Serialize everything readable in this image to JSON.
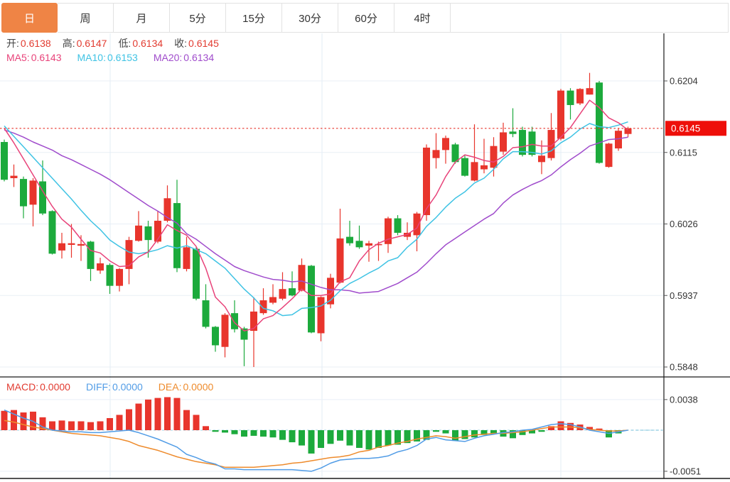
{
  "tabs": {
    "items": [
      {
        "label": "日",
        "active": true
      },
      {
        "label": "周",
        "active": false
      },
      {
        "label": "月",
        "active": false
      },
      {
        "label": "5分",
        "active": false
      },
      {
        "label": "15分",
        "active": false
      },
      {
        "label": "30分",
        "active": false
      },
      {
        "label": "60分",
        "active": false
      },
      {
        "label": "4时",
        "active": false
      }
    ]
  },
  "quote_bar": {
    "items": [
      {
        "label": "开:",
        "value": "0.6138",
        "color": "#e23b30"
      },
      {
        "label": "高:",
        "value": "0.6147",
        "color": "#e23b30"
      },
      {
        "label": "低:",
        "value": "0.6134",
        "color": "#e23b30"
      },
      {
        "label": "收:",
        "value": "0.6145",
        "color": "#e23b30"
      }
    ]
  },
  "ma_bar": {
    "items": [
      {
        "label": "MA5:",
        "value": "0.6143",
        "color": "#e8437a"
      },
      {
        "label": "MA10:",
        "value": "0.6153",
        "color": "#3fc3e4"
      },
      {
        "label": "MA20:",
        "value": "0.6134",
        "color": "#a04ccc"
      }
    ]
  },
  "macd_bar": {
    "items": [
      {
        "label": "MACD:",
        "value": "0.0000",
        "color": "#e23b30"
      },
      {
        "label": "DIFF:",
        "value": "0.0000",
        "color": "#519ce6"
      },
      {
        "label": "DEA:",
        "value": "0.0000",
        "color": "#ee8b2c"
      }
    ]
  },
  "chart_data": {
    "type": "candlestick",
    "subpanel_type": "macd-bar-line",
    "y_axis": {
      "main_ticks": [
        0.6204,
        0.6115,
        0.6026,
        0.5937,
        0.5848
      ],
      "current_price": 0.6145,
      "current_price_label": "0.6145",
      "macd_ticks": [
        0.0038,
        -0.0051
      ]
    },
    "legend": {
      "ma5": "MA5",
      "ma10": "MA10",
      "ma20": "MA20",
      "macd": "MACD",
      "diff": "DIFF",
      "dea": "DEA"
    },
    "candles_ohlc": [
      [
        0.6128,
        0.6131,
        0.6079,
        0.6081
      ],
      [
        0.6083,
        0.61,
        0.6072,
        0.6086
      ],
      [
        0.6082,
        0.6085,
        0.6033,
        0.6048
      ],
      [
        0.605,
        0.6083,
        0.6023,
        0.608
      ],
      [
        0.6079,
        0.6105,
        0.6037,
        0.6039
      ],
      [
        0.6042,
        0.6043,
        0.5988,
        0.5989
      ],
      [
        0.5993,
        0.6015,
        0.5983,
        0.6002
      ],
      [
        0.6,
        0.6026,
        0.5984,
        0.6002
      ],
      [
        0.5999,
        0.6012,
        0.598,
        0.6001
      ],
      [
        0.6004,
        0.6005,
        0.5955,
        0.597
      ],
      [
        0.5968,
        0.5984,
        0.5964,
        0.5977
      ],
      [
        0.5975,
        0.5977,
        0.5939,
        0.5949
      ],
      [
        0.5949,
        0.5971,
        0.5942,
        0.597
      ],
      [
        0.597,
        0.601,
        0.5951,
        0.6006
      ],
      [
        0.6005,
        0.6042,
        0.6004,
        0.6024
      ],
      [
        0.6023,
        0.603,
        0.5984,
        0.6006
      ],
      [
        0.6004,
        0.6042,
        0.6002,
        0.603
      ],
      [
        0.603,
        0.6074,
        0.6028,
        0.6058
      ],
      [
        0.6052,
        0.6081,
        0.5966,
        0.5971
      ],
      [
        0.597,
        0.601,
        0.5967,
        0.5997
      ],
      [
        0.5995,
        0.5997,
        0.5931,
        0.5933
      ],
      [
        0.5931,
        0.5951,
        0.5896,
        0.5898
      ],
      [
        0.5898,
        0.5899,
        0.5867,
        0.5875
      ],
      [
        0.5873,
        0.5915,
        0.586,
        0.5913
      ],
      [
        0.5915,
        0.5931,
        0.5891,
        0.5895
      ],
      [
        0.5896,
        0.5898,
        0.5849,
        0.5882
      ],
      [
        0.5893,
        0.5935,
        0.5848,
        0.5917
      ],
      [
        0.5915,
        0.5946,
        0.5913,
        0.5931
      ],
      [
        0.5928,
        0.5951,
        0.5926,
        0.5935
      ],
      [
        0.5933,
        0.5966,
        0.5931,
        0.5945
      ],
      [
        0.5946,
        0.5967,
        0.5936,
        0.5937
      ],
      [
        0.5943,
        0.5983,
        0.5942,
        0.5975
      ],
      [
        0.5974,
        0.5975,
        0.589,
        0.5891
      ],
      [
        0.589,
        0.5936,
        0.588,
        0.5935
      ],
      [
        0.5926,
        0.5964,
        0.5921,
        0.5959
      ],
      [
        0.5953,
        0.6045,
        0.5952,
        0.6008
      ],
      [
        0.601,
        0.603,
        0.5999,
        0.6002
      ],
      [
        0.6005,
        0.6024,
        0.5995,
        0.5997
      ],
      [
        0.5999,
        0.6005,
        0.5979,
        0.6002
      ],
      [
        0.6,
        0.6004,
        0.598,
        0.6001
      ],
      [
        0.6001,
        0.6035,
        0.599,
        0.6033
      ],
      [
        0.6033,
        0.6037,
        0.6012,
        0.6015
      ],
      [
        0.601,
        0.6028,
        0.6006,
        0.6015
      ],
      [
        0.6012,
        0.6041,
        0.5992,
        0.6039
      ],
      [
        0.6037,
        0.6125,
        0.603,
        0.6121
      ],
      [
        0.6108,
        0.6139,
        0.6095,
        0.6118
      ],
      [
        0.6118,
        0.6136,
        0.6101,
        0.6133
      ],
      [
        0.6125,
        0.6127,
        0.6101,
        0.6103
      ],
      [
        0.6108,
        0.6111,
        0.6085,
        0.6086
      ],
      [
        0.608,
        0.615,
        0.6079,
        0.6103
      ],
      [
        0.6094,
        0.6132,
        0.6089,
        0.6099
      ],
      [
        0.6096,
        0.6134,
        0.6085,
        0.6123
      ],
      [
        0.6116,
        0.6152,
        0.6112,
        0.614
      ],
      [
        0.6141,
        0.617,
        0.6134,
        0.6138
      ],
      [
        0.6143,
        0.6147,
        0.611,
        0.6112
      ],
      [
        0.6141,
        0.6147,
        0.611,
        0.6112
      ],
      [
        0.6103,
        0.613,
        0.6088,
        0.6111
      ],
      [
        0.6108,
        0.6164,
        0.6105,
        0.6143
      ],
      [
        0.6132,
        0.6194,
        0.613,
        0.6192
      ],
      [
        0.6192,
        0.6195,
        0.6156,
        0.6174
      ],
      [
        0.6176,
        0.6195,
        0.6174,
        0.6194
      ],
      [
        0.6187,
        0.6214,
        0.6187,
        0.6195
      ],
      [
        0.6202,
        0.6204,
        0.6101,
        0.6102
      ],
      [
        0.6097,
        0.6127,
        0.6096,
        0.6126
      ],
      [
        0.612,
        0.6145,
        0.6117,
        0.6142
      ],
      [
        0.6138,
        0.6147,
        0.6134,
        0.6145
      ]
    ],
    "ma5": [
      0.6145,
      0.6127,
      0.6107,
      0.6087,
      0.6067,
      0.6048,
      0.6032,
      0.6022,
      0.6007,
      0.5993,
      0.599,
      0.598,
      0.5973,
      0.5974,
      0.5985,
      0.5991,
      0.6007,
      0.6025,
      0.6018,
      0.6012,
      0.5998,
      0.5971,
      0.5935,
      0.5923,
      0.5903,
      0.5893,
      0.5896,
      0.5908,
      0.5912,
      0.5922,
      0.5933,
      0.5945,
      0.5937,
      0.5937,
      0.5939,
      0.5954,
      0.5959,
      0.598,
      0.5994,
      0.6002,
      0.6007,
      0.601,
      0.6013,
      0.6021,
      0.6045,
      0.6062,
      0.6085,
      0.6103,
      0.6112,
      0.6109,
      0.6105,
      0.6103,
      0.611,
      0.6121,
      0.6122,
      0.6125,
      0.6123,
      0.6123,
      0.6134,
      0.6146,
      0.6163,
      0.618,
      0.6171,
      0.6158,
      0.6152,
      0.6143
    ],
    "ma10": [
      0.6148,
      0.6135,
      0.6122,
      0.6109,
      0.6096,
      0.6083,
      0.607,
      0.6057,
      0.6043,
      0.603,
      0.6019,
      0.6006,
      0.5998,
      0.5991,
      0.5989,
      0.5991,
      0.5994,
      0.5999,
      0.5996,
      0.5999,
      0.5994,
      0.5989,
      0.598,
      0.5971,
      0.5958,
      0.5945,
      0.5934,
      0.5921,
      0.5918,
      0.5912,
      0.5913,
      0.5921,
      0.5922,
      0.5924,
      0.5931,
      0.5943,
      0.5952,
      0.5958,
      0.5965,
      0.5971,
      0.598,
      0.5984,
      0.5997,
      0.6007,
      0.6023,
      0.6034,
      0.6047,
      0.6058,
      0.6066,
      0.6077,
      0.6083,
      0.6094,
      0.6107,
      0.6116,
      0.6116,
      0.6115,
      0.6113,
      0.6117,
      0.6127,
      0.6134,
      0.6144,
      0.6151,
      0.6147,
      0.6146,
      0.6149,
      0.6153
    ],
    "ma20": [
      0.6143,
      0.6139,
      0.6134,
      0.6128,
      0.6123,
      0.6118,
      0.6111,
      0.6106,
      0.61,
      0.6094,
      0.6088,
      0.6081,
      0.6073,
      0.6065,
      0.6057,
      0.6049,
      0.6042,
      0.6034,
      0.6027,
      0.6014,
      0.6007,
      0.5998,
      0.5989,
      0.5981,
      0.5973,
      0.5968,
      0.5964,
      0.596,
      0.5957,
      0.5956,
      0.5954,
      0.5955,
      0.5951,
      0.5947,
      0.5944,
      0.5944,
      0.5943,
      0.594,
      0.5941,
      0.5942,
      0.5947,
      0.5952,
      0.5959,
      0.5966,
      0.5977,
      0.5989,
      0.6,
      0.6008,
      0.6016,
      0.6024,
      0.6032,
      0.6039,
      0.6052,
      0.6062,
      0.6069,
      0.6075,
      0.608,
      0.6087,
      0.6097,
      0.6106,
      0.6114,
      0.6123,
      0.6127,
      0.6131,
      0.6132,
      0.6134
    ],
    "macd_histogram": [
      0.0024,
      0.0025,
      0.0022,
      0.0023,
      0.0016,
      0.0011,
      0.0012,
      0.0011,
      0.0011,
      0.001,
      0.0011,
      0.0015,
      0.0019,
      0.0026,
      0.0033,
      0.0038,
      0.004,
      0.0041,
      0.004,
      0.0025,
      0.0019,
      0.0005,
      -0.0002,
      -0.0003,
      -0.0005,
      -0.0008,
      -0.0007,
      -0.0008,
      -0.0009,
      -0.0012,
      -0.0015,
      -0.0019,
      -0.0029,
      -0.0022,
      -0.0017,
      -0.0013,
      -0.0019,
      -0.0022,
      -0.0024,
      -0.0022,
      -0.0019,
      -0.0018,
      -0.0016,
      -0.0014,
      -0.0012,
      -0.0002,
      -0.0004,
      -0.0013,
      -0.0011,
      -0.0009,
      -0.0006,
      -0.0005,
      -0.0008,
      -0.001,
      -0.0006,
      -0.0004,
      -0.0002,
      0.0005,
      0.0011,
      0.0009,
      0.0007,
      0.0004,
      0.0002,
      -0.0009,
      -0.0004,
      0.0
    ],
    "diff": [
      0.0025,
      0.002,
      0.0015,
      0.0011,
      0.0004,
      0.0,
      -0.0001,
      -0.0002,
      -0.0002,
      -0.0003,
      -0.0003,
      -0.0002,
      -0.0001,
      0.0,
      -0.0003,
      -0.0007,
      -0.0011,
      -0.0016,
      -0.0021,
      -0.003,
      -0.0034,
      -0.0039,
      -0.0042,
      -0.0048,
      -0.0048,
      -0.0049,
      -0.0049,
      -0.0049,
      -0.0049,
      -0.0049,
      -0.0049,
      -0.005,
      -0.0051,
      -0.0047,
      -0.0041,
      -0.0037,
      -0.0036,
      -0.0035,
      -0.0035,
      -0.0034,
      -0.0032,
      -0.0027,
      -0.0024,
      -0.0019,
      -0.0011,
      -0.0009,
      -0.0012,
      -0.0013,
      -0.0014,
      -0.001,
      -0.0007,
      -0.0005,
      -0.0003,
      -0.0002,
      0.0,
      0.0001,
      0.0004,
      0.0007,
      0.0008,
      0.0007,
      0.0004,
      0.0,
      -0.0002,
      -0.0004,
      -0.0002,
      0.0
    ],
    "dea": [
      0.0012,
      0.001,
      0.0007,
      0.0004,
      0.0002,
      0.0,
      -0.0002,
      -0.0004,
      -0.0005,
      -0.0006,
      -0.0007,
      -0.0009,
      -0.0011,
      -0.0014,
      -0.0019,
      -0.0022,
      -0.0025,
      -0.0029,
      -0.0033,
      -0.0036,
      -0.0039,
      -0.0041,
      -0.0043,
      -0.0046,
      -0.0046,
      -0.0046,
      -0.0046,
      -0.0045,
      -0.0044,
      -0.0043,
      -0.0041,
      -0.004,
      -0.0038,
      -0.0036,
      -0.0034,
      -0.0033,
      -0.0031,
      -0.0027,
      -0.0025,
      -0.0021,
      -0.0019,
      -0.0016,
      -0.0014,
      -0.0011,
      -0.0009,
      -0.0007,
      -0.0008,
      -0.001,
      -0.0008,
      -0.0006,
      -0.0005,
      -0.0004,
      -0.0004,
      -0.0003,
      -0.0002,
      0.0,
      0.0002,
      0.0004,
      0.0004,
      0.0004,
      0.0003,
      0.0001,
      0.0,
      -0.0001,
      -0.0001,
      0.0
    ],
    "colors": {
      "up": "#e8352c",
      "down": "#1caa3c",
      "ma5": "#e8437a",
      "ma10": "#3fc3e4",
      "ma20": "#a04ccc",
      "diff": "#519ce6",
      "dea": "#ee8b2c",
      "price_line": "#e8352c",
      "price_bubble": "#ee0f0a",
      "grid": "#e9eff6",
      "vgrid": "#e3edf6",
      "axis_text": "#333333",
      "border": "#1a1a1a",
      "zero_dash": "#9fd4e6",
      "tail_dash": "#8ccbe0",
      "tab_active": "#ef8445"
    }
  }
}
